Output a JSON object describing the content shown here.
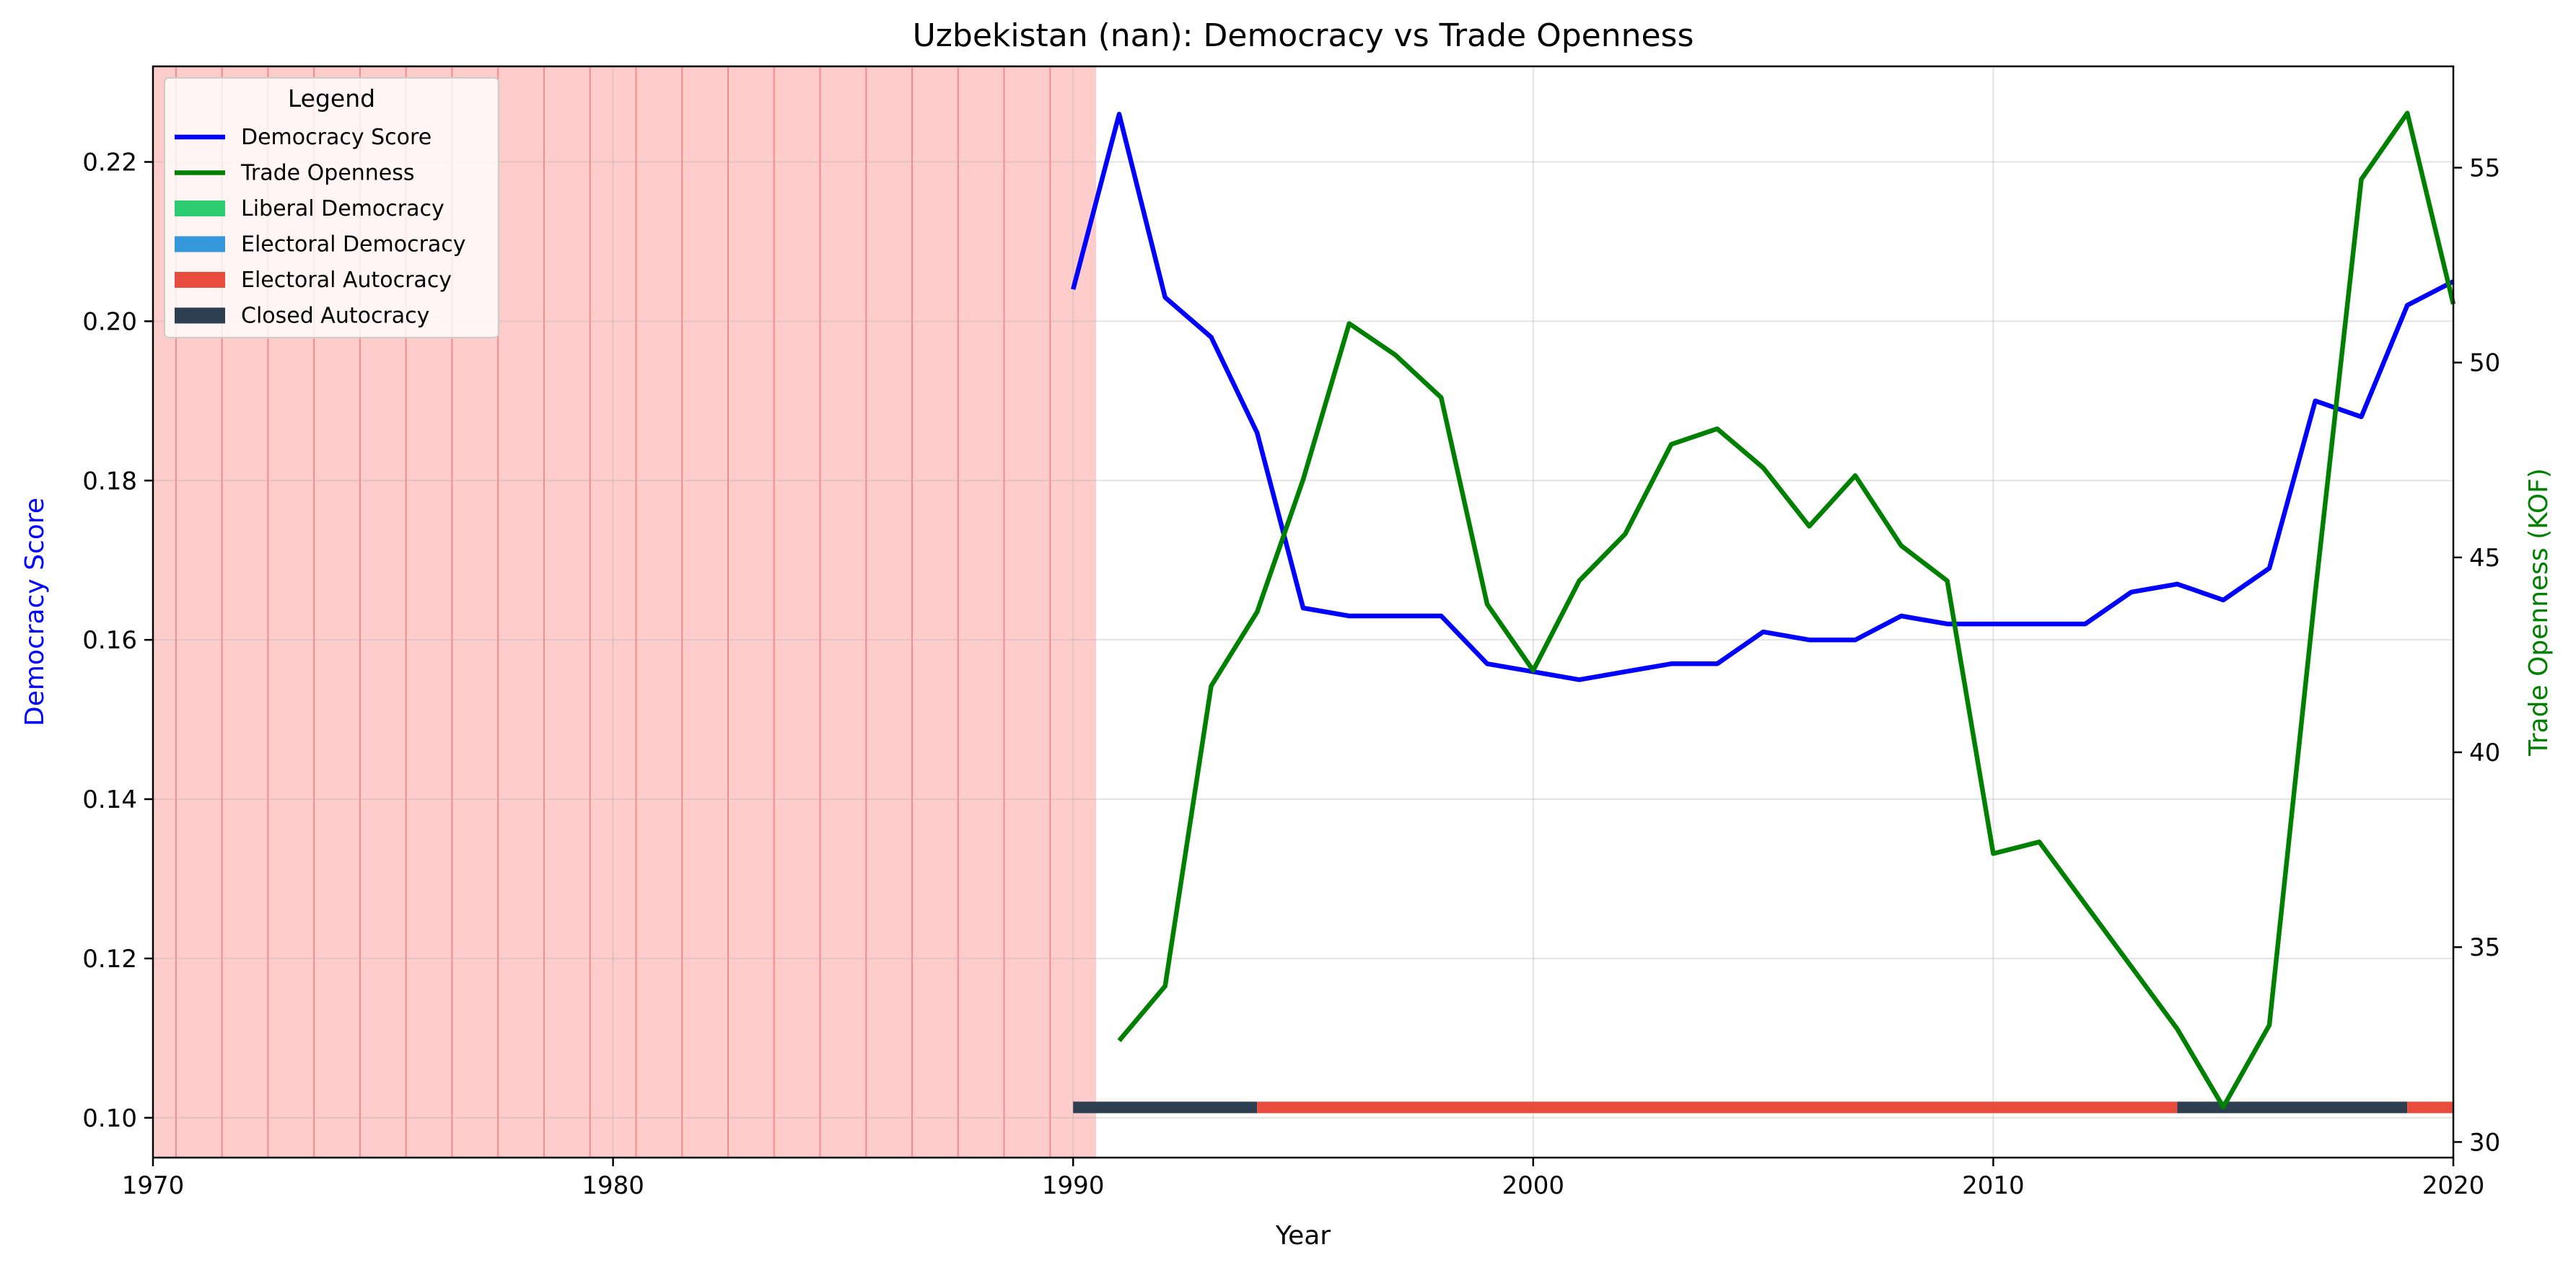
{
  "chart_data": {
    "type": "line",
    "title": "Uzbekistan (nan): Democracy vs Trade Openness",
    "xlabel": "Year",
    "ylabel_left": "Democracy Score",
    "ylabel_right": "Trade Openness (KOF)",
    "xlim": [
      1970,
      2020
    ],
    "ylim_left": [
      0.095,
      0.232
    ],
    "ylim_right": [
      29.6,
      57.6
    ],
    "x_ticks": [
      1970,
      1980,
      1990,
      2000,
      2010,
      2020
    ],
    "y_ticks_left": [
      0.1,
      0.12,
      0.14,
      0.16,
      0.18,
      0.2,
      0.22
    ],
    "y_ticks_left_labels": [
      "0.10",
      "0.12",
      "0.14",
      "0.16",
      "0.18",
      "0.20",
      "0.22"
    ],
    "y_ticks_right": [
      30,
      35,
      40,
      45,
      50,
      55
    ],
    "y_ticks_right_labels": [
      "30",
      "35",
      "40",
      "45",
      "50",
      "55"
    ],
    "x_ticks_labels": [
      "1970",
      "1980",
      "1990",
      "2000",
      "2010",
      "2020"
    ],
    "grid": true,
    "shaded_region": {
      "x_start": 1970,
      "x_end": 1990.5,
      "color": "#ffcccc",
      "line_color": "#f08080"
    },
    "shaded_lines": [
      1970.5,
      1971.5,
      1972.5,
      1973.5,
      1974.5,
      1975.5,
      1976.5,
      1977.5,
      1978.5,
      1979.5,
      1980.5,
      1981.5,
      1982.5,
      1983.5,
      1984.5,
      1985.5,
      1986.5,
      1987.5,
      1988.5,
      1989.5
    ],
    "series": [
      {
        "name": "Democracy Score",
        "axis": "left",
        "color": "#0000ff",
        "x": [
          1990,
          1991,
          1992,
          1993,
          1994,
          1995,
          1996,
          1997,
          1998,
          1999,
          2000,
          2001,
          2002,
          2003,
          2004,
          2005,
          2006,
          2007,
          2008,
          2009,
          2010,
          2011,
          2012,
          2013,
          2014,
          2015,
          2016,
          2017,
          2018,
          2019,
          2020
        ],
        "values": [
          0.204,
          0.226,
          0.203,
          0.198,
          0.186,
          0.164,
          0.163,
          0.163,
          0.163,
          0.157,
          0.156,
          0.155,
          0.156,
          0.157,
          0.157,
          0.161,
          0.16,
          0.16,
          0.163,
          0.162,
          0.162,
          0.162,
          0.162,
          0.166,
          0.167,
          0.165,
          0.169,
          0.19,
          0.188,
          0.202,
          0.205
        ]
      },
      {
        "name": "Trade Openness",
        "axis": "right",
        "color": "#008000",
        "x": [
          1991,
          1992,
          1993,
          1994,
          1995,
          1996,
          1997,
          1998,
          1999,
          2000,
          2001,
          2002,
          2003,
          2004,
          2005,
          2006,
          2007,
          2008,
          2009,
          2010,
          2011,
          2012,
          2013,
          2014,
          2015,
          2016,
          2017,
          2018,
          2019,
          2020
        ],
        "values": [
          32.6,
          34.0,
          41.7,
          43.6,
          47.0,
          51.0,
          50.2,
          49.1,
          43.8,
          42.1,
          44.4,
          45.6,
          47.9,
          48.3,
          47.3,
          45.8,
          47.1,
          45.3,
          44.4,
          37.4,
          37.7,
          36.1,
          34.5,
          32.9,
          30.9,
          33.0,
          44.1,
          54.7,
          56.4,
          51.5
        ]
      }
    ],
    "regime_bar": {
      "y_value": 0.1013,
      "segments": [
        {
          "label": "Closed Autocracy",
          "x_start": 1990,
          "x_end": 1994,
          "color": "#2c3e50"
        },
        {
          "label": "Electoral Autocracy",
          "x_start": 1994,
          "x_end": 2014,
          "color": "#e74c3c"
        },
        {
          "label": "Closed Autocracy",
          "x_start": 2014,
          "x_end": 2019,
          "color": "#2c3e50"
        },
        {
          "label": "Electoral Autocracy",
          "x_start": 2019,
          "x_end": 2020,
          "color": "#e74c3c"
        }
      ]
    },
    "legend": {
      "title": "Legend",
      "placement": "top-left",
      "entries": [
        {
          "label": "Democracy Score",
          "kind": "line",
          "color": "#0000ff"
        },
        {
          "label": "Trade Openness",
          "kind": "line",
          "color": "#008000"
        },
        {
          "label": "Liberal Democracy",
          "kind": "patch",
          "color": "#2ecc71"
        },
        {
          "label": "Electoral Democracy",
          "kind": "patch",
          "color": "#3498db"
        },
        {
          "label": "Electoral Autocracy",
          "kind": "patch",
          "color": "#e74c3c"
        },
        {
          "label": "Closed Autocracy",
          "kind": "patch",
          "color": "#2c3e50"
        }
      ]
    }
  }
}
